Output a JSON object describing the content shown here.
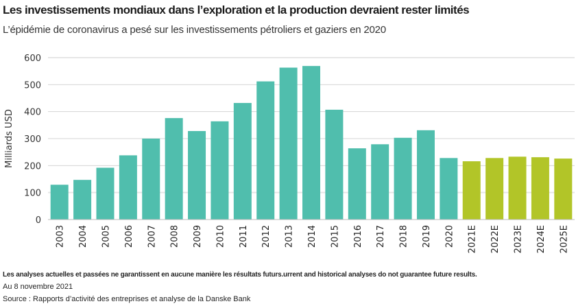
{
  "title": "Les investissements mondiaux dans l’exploration et la production devraient rester limités",
  "subtitle": "L’épidémie de coronavirus a pesé sur les investissements pétroliers et gaziers en 2020",
  "footnotes": {
    "disclaimer": "Les analyses actuelles et passées ne garantissent en aucune manière les résultats futurs.urrent and historical analyses do not guarantee future results.",
    "date": "Au 8 novembre 2021",
    "source": "Source : Rapports d’activité des entreprises et analyse de la Danske Bank"
  },
  "chart_data": {
    "type": "bar",
    "title": "Les investissements mondiaux dans l’exploration et la production devraient rester limités",
    "ylabel": "Milliards USD",
    "xlabel": "",
    "ylim": [
      0,
      600
    ],
    "yticks": [
      0,
      100,
      200,
      300,
      400,
      500,
      600
    ],
    "grid": true,
    "categories": [
      "2003",
      "2004",
      "2005",
      "2006",
      "2007",
      "2008",
      "2009",
      "2010",
      "2011",
      "2012",
      "2013",
      "2014",
      "2015",
      "2016",
      "2017",
      "2018",
      "2019",
      "2020",
      "2021E",
      "2022E",
      "2023E",
      "2024E",
      "2025E"
    ],
    "values": [
      129,
      147,
      192,
      238,
      300,
      376,
      328,
      364,
      432,
      512,
      563,
      569,
      407,
      264,
      279,
      303,
      331,
      228,
      216,
      228,
      233,
      231,
      226
    ],
    "colors": {
      "actual": "#50bead",
      "estimate": "#b2c528",
      "grid": "#d4d4d4"
    }
  }
}
